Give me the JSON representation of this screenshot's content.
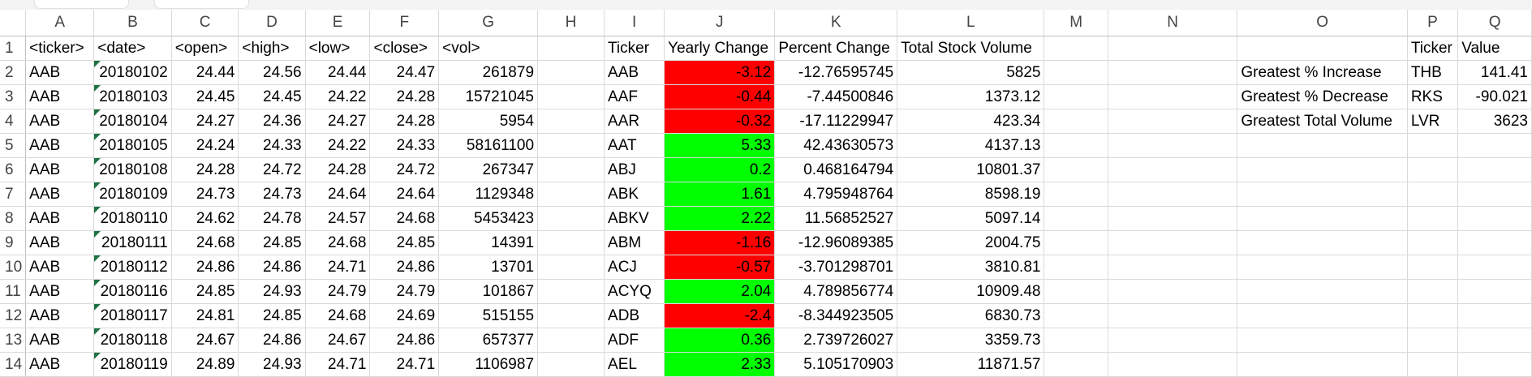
{
  "colors": {
    "positive": "#00ff00",
    "negative": "#ff0000",
    "flag": "#1e7145"
  },
  "columns": [
    "A",
    "B",
    "C",
    "D",
    "E",
    "F",
    "G",
    "H",
    "I",
    "J",
    "K",
    "L",
    "M",
    "N",
    "O",
    "P",
    "Q"
  ],
  "rows": [
    [
      "1",
      "<ticker>",
      "<date>",
      "<open>",
      "<high>",
      "<low>",
      "<close>",
      "<vol>",
      "",
      "Ticker",
      "Yearly Change",
      "Percent Change",
      "Total Stock Volume",
      "",
      "",
      "",
      "Ticker",
      "Value"
    ],
    [
      "2",
      "AAB",
      "20180102",
      "24.44",
      "24.56",
      "24.44",
      "24.47",
      "261879",
      "",
      "AAB",
      "-3.12",
      "-12.76595745",
      "5825",
      "",
      "",
      "Greatest % Increase",
      "THB",
      "141.41"
    ],
    [
      "3",
      "AAB",
      "20180103",
      "24.45",
      "24.45",
      "24.22",
      "24.28",
      "15721045",
      "",
      "AAF",
      "-0.44",
      "-7.44500846",
      "1373.12",
      "",
      "",
      "Greatest % Decrease",
      "RKS",
      "-90.021"
    ],
    [
      "4",
      "AAB",
      "20180104",
      "24.27",
      "24.36",
      "24.27",
      "24.28",
      "5954",
      "",
      "AAR",
      "-0.32",
      "-17.11229947",
      "423.34",
      "",
      "",
      "Greatest Total Volume",
      "LVR",
      "3623"
    ],
    [
      "5",
      "AAB",
      "20180105",
      "24.24",
      "24.33",
      "24.22",
      "24.33",
      "58161100",
      "",
      "AAT",
      "5.33",
      "42.43630573",
      "4137.13",
      "",
      "",
      "",
      "",
      ""
    ],
    [
      "6",
      "AAB",
      "20180108",
      "24.28",
      "24.72",
      "24.28",
      "24.72",
      "267347",
      "",
      "ABJ",
      "0.2",
      "0.468164794",
      "10801.37",
      "",
      "",
      "",
      "",
      ""
    ],
    [
      "7",
      "AAB",
      "20180109",
      "24.73",
      "24.73",
      "24.64",
      "24.64",
      "1129348",
      "",
      "ABK",
      "1.61",
      "4.795948764",
      "8598.19",
      "",
      "",
      "",
      "",
      ""
    ],
    [
      "8",
      "AAB",
      "20180110",
      "24.62",
      "24.78",
      "24.57",
      "24.68",
      "5453423",
      "",
      "ABKV",
      "2.22",
      "11.56852527",
      "5097.14",
      "",
      "",
      "",
      "",
      ""
    ],
    [
      "9",
      "AAB",
      "20180111",
      "24.68",
      "24.85",
      "24.68",
      "24.85",
      "14391",
      "",
      "ABM",
      "-1.16",
      "-12.96089385",
      "2004.75",
      "",
      "",
      "",
      "",
      ""
    ],
    [
      "10",
      "AAB",
      "20180112",
      "24.86",
      "24.86",
      "24.71",
      "24.86",
      "13701",
      "",
      "ACJ",
      "-0.57",
      "-3.701298701",
      "3810.81",
      "",
      "",
      "",
      "",
      ""
    ],
    [
      "11",
      "AAB",
      "20180116",
      "24.85",
      "24.93",
      "24.79",
      "24.79",
      "101867",
      "",
      "ACYQ",
      "2.04",
      "4.789856774",
      "10909.48",
      "",
      "",
      "",
      "",
      ""
    ],
    [
      "12",
      "AAB",
      "20180117",
      "24.81",
      "24.85",
      "24.68",
      "24.69",
      "515155",
      "",
      "ADB",
      "-2.4",
      "-8.344923505",
      "6830.73",
      "",
      "",
      "",
      "",
      ""
    ],
    [
      "13",
      "AAB",
      "20180118",
      "24.67",
      "24.86",
      "24.67",
      "24.86",
      "657377",
      "",
      "ADF",
      "0.36",
      "2.739726027",
      "3359.73",
      "",
      "",
      "",
      "",
      ""
    ],
    [
      "14",
      "AAB",
      "20180119",
      "24.89",
      "24.93",
      "24.71",
      "24.71",
      "1106987",
      "",
      "AEL",
      "2.33",
      "5.105170903",
      "11871.57",
      "",
      "",
      "",
      "",
      ""
    ]
  ]
}
